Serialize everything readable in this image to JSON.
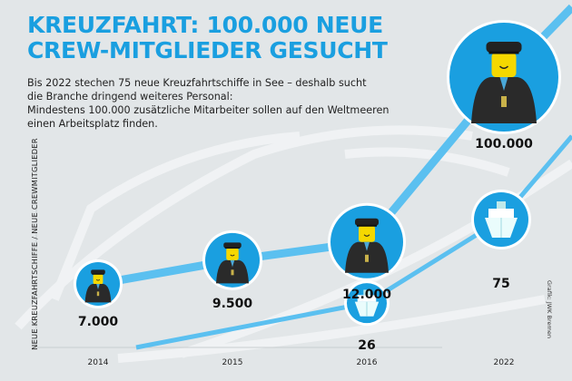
{
  "header": {
    "title_line1": "KREUZFAHRT: 100.000 NEUE",
    "title_line2": "CREW-MITGLIEDER GESUCHT",
    "subtitle_lines": [
      "Bis 2022 stechen 75 neue Kreuzfahrtschiffe in See – deshalb sucht",
      "die Branche dringend weiteres Personal:",
      "Mindestens 100.000 zusätzliche Mitarbeiter sollen auf den Weltmeeren",
      "einen Arbeitsplatz finden."
    ]
  },
  "credit": "Grafik: JWK Bremen",
  "colors": {
    "accent": "#1a9fe0",
    "line": "#5bc0f0",
    "background": "#e2e6e8"
  },
  "chart_data": {
    "type": "line",
    "ylabel": "NEUE KREUZFAHRTSCHIFFE / NEUE CREWMITGLIEDER",
    "categories": [
      "2014",
      "2015",
      "2016",
      "2022"
    ],
    "series": [
      {
        "name": "Neue Crewmitglieder",
        "icon": "captain-icon",
        "values": [
          7000,
          9500,
          12000,
          100000
        ],
        "labels": [
          "7.000",
          "9.500",
          "12.000",
          "100.000"
        ]
      },
      {
        "name": "Neue Kreuzfahrtschiffe",
        "icon": "ship-icon",
        "values": [
          null,
          null,
          26,
          75
        ],
        "labels": [
          "",
          "",
          "26",
          "75"
        ]
      }
    ]
  }
}
